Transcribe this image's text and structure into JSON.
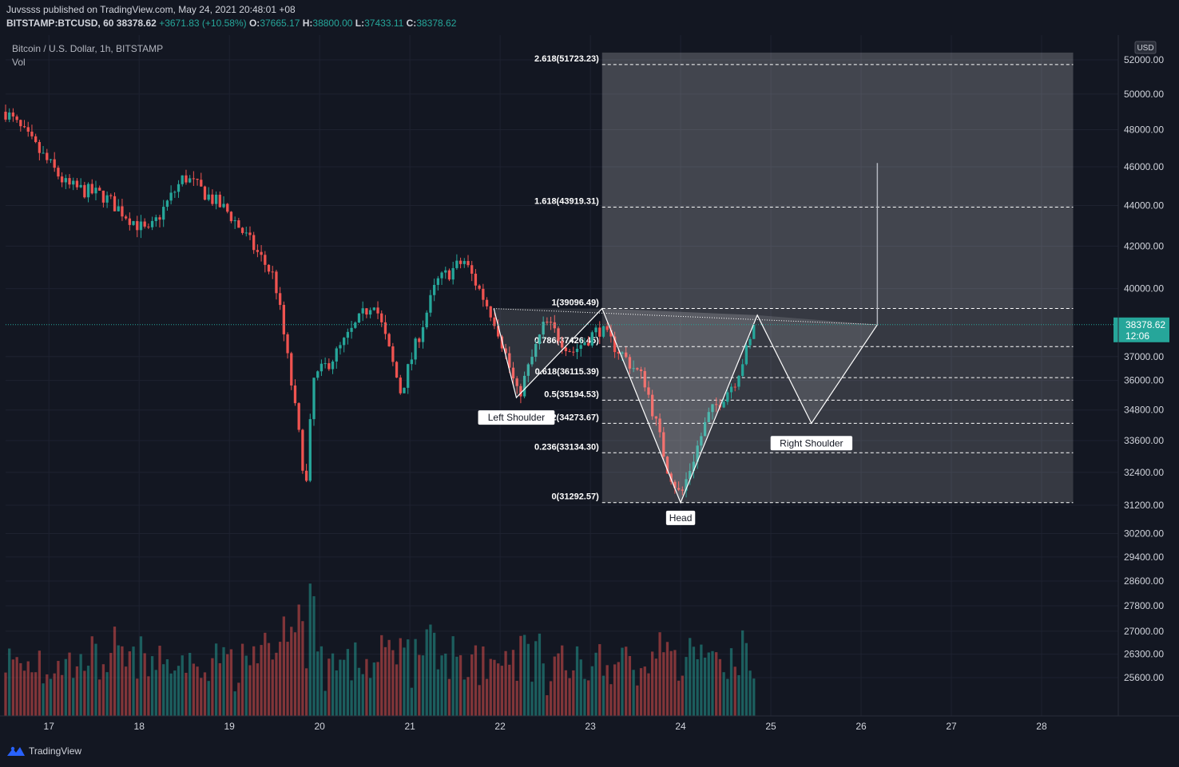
{
  "header": {
    "published": "Juvssss published on TradingView.com, May 24, 2021 20:48:01 +08",
    "symbol": "BITSTAMP:BTCUSD, 60",
    "last": "38378.62",
    "change": "+3671.83 (+10.58%)",
    "o_label": "O:",
    "o": "37665.17",
    "h_label": "H:",
    "h": "38800.00",
    "l_label": "L:",
    "l": "37433.11",
    "c_label": "C:",
    "c": "38378.62"
  },
  "legend": {
    "title": "Bitcoin / U.S. Dollar, 1h, BITSTAMP",
    "vol": "Vol"
  },
  "currency": "USD",
  "price_tag": {
    "price": "38378.62",
    "countdown": "12:06"
  },
  "footer": {
    "brand": "TradingView",
    "logo_icon": "tradingview-logo-icon"
  },
  "colors": {
    "up": "#26a69a",
    "down": "#ef5350",
    "background": "#131722",
    "fib_fill": "#ffffff"
  },
  "chart_data": {
    "type": "candlestick",
    "y_scale": "log",
    "ylim": [
      24500,
      53500
    ],
    "price_axis_ticks": [
      "52000.00",
      "50000.00",
      "48000.00",
      "46000.00",
      "44000.00",
      "42000.00",
      "40000.00",
      "37000.00",
      "36000.00",
      "34800.00",
      "33600.00",
      "32400.00",
      "31200.00",
      "30200.00",
      "29400.00",
      "28600.00",
      "27800.00",
      "27000.00",
      "26300.00",
      "25600.00"
    ],
    "price_axis_values": [
      52000,
      50000,
      48000,
      46000,
      44000,
      42000,
      40000,
      37000,
      36000,
      34800,
      33600,
      32400,
      31200,
      30200,
      29400,
      28600,
      27800,
      27000,
      26300,
      25600
    ],
    "x_ticks": [
      "17",
      "18",
      "19",
      "20",
      "21",
      "22",
      "23",
      "24",
      "25",
      "26",
      "27",
      "28"
    ],
    "x_tick_day": [
      17,
      18,
      19,
      20,
      21,
      22,
      23,
      24,
      25,
      26,
      27,
      28
    ],
    "x_range_day": [
      16.52,
      28.85
    ],
    "anchors_day": [
      16.52,
      17.2,
      17.6,
      18.1,
      18.5,
      19.0,
      19.5,
      19.85,
      19.93,
      20.2,
      20.6,
      20.9,
      21.3,
      21.6,
      21.95,
      22.2,
      22.5,
      22.8,
      23.1,
      23.6,
      23.85,
      24.0,
      24.3,
      24.6,
      24.85
    ],
    "anchors_price": [
      49000,
      45000,
      44500,
      42600,
      45500,
      43600,
      40500,
      31800,
      36000,
      37200,
      39500,
      35500,
      40300,
      41300,
      38500,
      35300,
      38500,
      37200,
      38200,
      36000,
      32600,
      31500,
      34500,
      36000,
      38378.62
    ],
    "fib_levels": [
      {
        "ratio": "2.618",
        "price": 51723.23,
        "label": "2.618(51723.23)"
      },
      {
        "ratio": "1.618",
        "price": 43919.31,
        "label": "1.618(43919.31)"
      },
      {
        "ratio": "1",
        "price": 39096.49,
        "label": "1(39096.49)"
      },
      {
        "ratio": "0.786",
        "price": 37426.45,
        "label": "0.786(37426.45)"
      },
      {
        "ratio": "0.618",
        "price": 36115.39,
        "label": "0.618(36115.39)"
      },
      {
        "ratio": "0.5",
        "price": 35194.53,
        "label": "0.5(35194.53)"
      },
      {
        "ratio": "0.382",
        "price": 34273.67,
        "label": "0.382(34273.67)"
      },
      {
        "ratio": "0.236",
        "price": 33134.3,
        "label": "0.236(33134.30)"
      },
      {
        "ratio": "0",
        "price": 31292.57,
        "label": "0(31292.57)"
      }
    ],
    "fib_range_day": [
      23.13,
      28.35
    ],
    "pattern": {
      "days": [
        21.93,
        22.18,
        23.13,
        24.0,
        24.85,
        25.45,
        26.18
      ],
      "prices": [
        39096.49,
        35300,
        39096.49,
        31292.57,
        38800,
        34273.67,
        38378.62
      ],
      "target_days": [
        26.18,
        26.18
      ],
      "target_prices": [
        38378.62,
        46200
      ]
    },
    "pattern_labels": [
      {
        "text": "Left Shoulder",
        "day": 22.18,
        "price": 34500
      },
      {
        "text": "Head",
        "day": 24.0,
        "price": 30750
      },
      {
        "text": "Right Shoulder",
        "day": 25.45,
        "price": 33500
      }
    ],
    "last_price": 38378.62
  }
}
